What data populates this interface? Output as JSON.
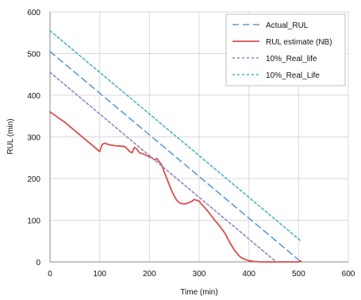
{
  "chart_data": {
    "type": "line",
    "xlabel": "Time (min)",
    "ylabel": "RUL (min)",
    "xlim": [
      0,
      600
    ],
    "ylim": [
      0,
      600
    ],
    "xticks": [
      0,
      100,
      200,
      300,
      400,
      500,
      600
    ],
    "yticks": [
      0,
      100,
      200,
      300,
      400,
      500,
      600
    ],
    "grid": true,
    "legend_position": "top-right",
    "series": [
      {
        "name": "Actual_RUL",
        "color": "#5b9bd5",
        "style": "dashed",
        "x": [
          0,
          505
        ],
        "y": [
          505,
          0
        ]
      },
      {
        "name": "RUL estimate (NB)",
        "color": "#d94c4c",
        "style": "solid",
        "x": [
          0,
          10,
          20,
          30,
          40,
          50,
          60,
          70,
          80,
          90,
          95,
          100,
          105,
          110,
          120,
          130,
          140,
          150,
          155,
          160,
          165,
          170,
          175,
          180,
          190,
          195,
          200,
          205,
          210,
          215,
          220,
          225,
          230,
          235,
          240,
          245,
          250,
          255,
          260,
          265,
          270,
          275,
          280,
          285,
          290,
          295,
          300,
          305,
          310,
          315,
          320,
          325,
          330,
          335,
          340,
          345,
          350,
          355,
          360,
          365,
          370,
          375,
          380,
          385,
          390,
          395,
          400,
          405,
          410,
          415,
          420,
          430,
          440,
          450,
          460,
          470,
          480,
          490,
          500,
          505
        ],
        "y": [
          360,
          352,
          343,
          335,
          325,
          315,
          305,
          295,
          285,
          275,
          270,
          265,
          282,
          285,
          281,
          279,
          278,
          277,
          272,
          265,
          262,
          275,
          270,
          262,
          258,
          255,
          252,
          250,
          245,
          248,
          240,
          232,
          215,
          200,
          185,
          170,
          158,
          148,
          142,
          140,
          139,
          140,
          143,
          145,
          150,
          148,
          146,
          138,
          132,
          125,
          118,
          110,
          102,
          95,
          88,
          80,
          72,
          62,
          50,
          40,
          30,
          22,
          15,
          10,
          7,
          5,
          3,
          2,
          1,
          1,
          0,
          0,
          0,
          0,
          0,
          0,
          0,
          0,
          0,
          2
        ]
      },
      {
        "name": "10%_Real_life",
        "color": "#9b7ec8",
        "style": "dotted",
        "x": [
          0,
          455
        ],
        "y": [
          455,
          0
        ]
      },
      {
        "name": "10%_Real_Life",
        "color": "#4bb3c7",
        "style": "dotted",
        "x": [
          0,
          505
        ],
        "y": [
          555,
          50
        ]
      }
    ]
  }
}
